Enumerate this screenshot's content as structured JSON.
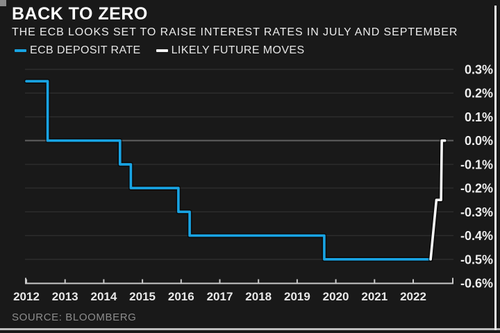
{
  "header": {
    "title": "BACK TO ZERO",
    "subtitle": "THE ECB LOOKS SET TO RAISE INTEREST RATES IN JULY AND SEPTEMBER"
  },
  "legend": {
    "items": [
      {
        "label": "ECB DEPOSIT RATE",
        "color": "#18a4e4"
      },
      {
        "label": "LIKELY FUTURE MOVES",
        "color": "#f5f5f5"
      }
    ]
  },
  "chart_data": {
    "type": "line",
    "title": "BACK TO ZERO",
    "subtitle": "THE ECB LOOKS SET TO RAISE INTEREST RATES IN JULY AND SEPTEMBER",
    "xlabel": "",
    "ylabel": "",
    "unit": "%",
    "grid": true,
    "legend_position": "top",
    "x_axis": {
      "ticks": [
        2012,
        2013,
        2014,
        2015,
        2016,
        2017,
        2018,
        2019,
        2020,
        2021,
        2022
      ],
      "tick_labels": [
        "2012",
        "2013",
        "2014",
        "2015",
        "2016",
        "2017",
        "2018",
        "2019",
        "2020",
        "2021",
        "2022"
      ],
      "range": [
        2011.95,
        2023.05
      ]
    },
    "y_axis": {
      "ticks": [
        0.3,
        0.2,
        0.1,
        0.0,
        -0.1,
        -0.2,
        -0.3,
        -0.4,
        -0.5,
        -0.6
      ],
      "tick_labels": [
        "0.3%",
        "0.2%",
        "0.1%",
        "0.0%",
        "-0.1%",
        "-0.2%",
        "-0.3%",
        "-0.4%",
        "-0.5%",
        "-0.6%"
      ],
      "range": [
        -0.6,
        0.3
      ]
    },
    "series": [
      {
        "name": "ECB DEPOSIT RATE",
        "color": "#18a4e4",
        "style": "step",
        "points": [
          [
            2012.0,
            0.25
          ],
          [
            2012.55,
            0.0
          ],
          [
            2014.42,
            -0.1
          ],
          [
            2014.7,
            -0.2
          ],
          [
            2015.93,
            -0.3
          ],
          [
            2016.22,
            -0.4
          ],
          [
            2019.7,
            -0.5
          ]
        ],
        "end_x": 2022.45
      },
      {
        "name": "LIKELY FUTURE MOVES",
        "color": "#f5f5f5",
        "style": "poly",
        "points": [
          [
            2022.45,
            -0.5
          ],
          [
            2022.6,
            -0.25
          ],
          [
            2022.72,
            -0.25
          ],
          [
            2022.74,
            0.0
          ],
          [
            2022.82,
            0.0
          ]
        ]
      }
    ]
  },
  "source": {
    "label": "SOURCE: BLOOMBERG"
  },
  "colors": {
    "background": "#191919",
    "grid": "#2e2e2e",
    "zero_line": "#606060",
    "axis": "#c9c9c9",
    "tick_label": "#f0f0f0",
    "x_label": "#e8e8e8",
    "line_shadow": "#000000"
  }
}
